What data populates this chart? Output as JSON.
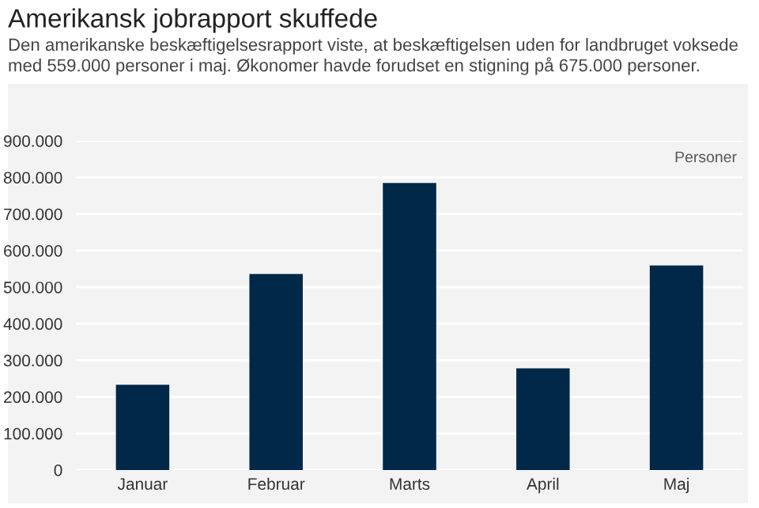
{
  "chart_data": {
    "type": "bar",
    "title": "Amerikansk jobrapport skuffede",
    "subtitle": "Den amerikanske beskæftigelsesrapport viste, at beskæftigelsen uden for landbruget voksede med 559.000 personer i maj. Økonomer havde forudset en stigning på 675.000 personer.",
    "ylabel": "Personer",
    "categories": [
      "Januar",
      "Februar",
      "Marts",
      "April",
      "Maj"
    ],
    "values": [
      233000,
      536000,
      785000,
      278000,
      559000
    ],
    "color": "#012848",
    "ylim": [
      0,
      900000
    ],
    "yticks": [
      {
        "value": 0,
        "label": "0"
      },
      {
        "value": 100000,
        "label": "100.000"
      },
      {
        "value": 200000,
        "label": "200.000"
      },
      {
        "value": 300000,
        "label": "300.000"
      },
      {
        "value": 400000,
        "label": "400.000"
      },
      {
        "value": 500000,
        "label": "500.000"
      },
      {
        "value": 600000,
        "label": "600.000"
      },
      {
        "value": 700000,
        "label": "700.000"
      },
      {
        "value": 800000,
        "label": "800.000"
      },
      {
        "value": 900000,
        "label": "900.000"
      }
    ],
    "grid": "y"
  }
}
